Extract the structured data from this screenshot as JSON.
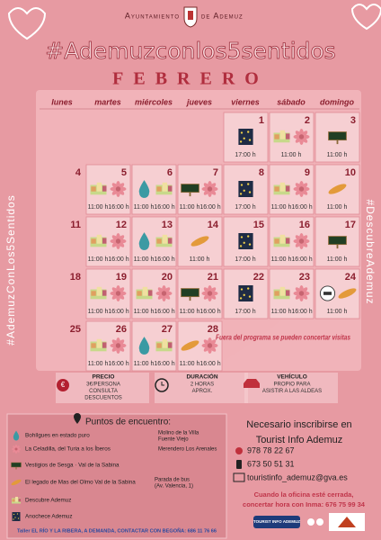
{
  "header": {
    "org_left": "Ayuntamiento",
    "org_right": "de Ademuz",
    "hashtag": "#Ademuzconlos5sentidos",
    "month": "FEBRERO"
  },
  "side": {
    "left": "#AdemuzConLos5Sentidos",
    "right": "#DescubreAdemuz"
  },
  "calendar": {
    "weekdays": [
      "lunes",
      "martes",
      "miércoles",
      "jueves",
      "viernes",
      "sábado",
      "domingo"
    ],
    "weeks": [
      [
        null,
        null,
        null,
        null,
        {
          "day": 1,
          "icons": [
            "night"
          ],
          "times": [
            "17:00 h"
          ]
        },
        {
          "day": 2,
          "icons": [
            "village",
            "flower"
          ],
          "times": [
            "11:00 h"
          ]
        },
        {
          "day": 3,
          "icons": [
            "sign"
          ],
          "times": [
            "11:00 h"
          ]
        }
      ],
      [
        {
          "day": 4
        },
        {
          "day": 5,
          "icons": [
            "village",
            "flower"
          ],
          "times": [
            "11:00 h",
            "16:00 h"
          ]
        },
        {
          "day": 6,
          "icons": [
            "drop",
            "village"
          ],
          "times": [
            "11:00 h",
            "16:00 h"
          ]
        },
        {
          "day": 7,
          "icons": [
            "sign",
            "flower"
          ],
          "times": [
            "11:00 h",
            "16:00 h"
          ]
        },
        {
          "day": 8,
          "icons": [
            "night"
          ],
          "times": [
            "17:00 h"
          ]
        },
        {
          "day": 9,
          "icons": [
            "village",
            "flower"
          ],
          "times": [
            "11:00 h",
            "16:00 h"
          ]
        },
        {
          "day": 10,
          "icons": [
            "bread"
          ],
          "times": [
            "11:00 h"
          ]
        }
      ],
      [
        {
          "day": 11
        },
        {
          "day": 12,
          "icons": [
            "village",
            "flower"
          ],
          "times": [
            "11:00 h",
            "16:00 h"
          ]
        },
        {
          "day": 13,
          "icons": [
            "drop",
            "village"
          ],
          "times": [
            "11:00 h",
            "16:00 h"
          ]
        },
        {
          "day": 14,
          "icons": [
            "bread"
          ],
          "times": [
            "11:00 h"
          ]
        },
        {
          "day": 15,
          "icons": [
            "night"
          ],
          "times": [
            "17:00 h"
          ]
        },
        {
          "day": 16,
          "icons": [
            "village",
            "flower"
          ],
          "times": [
            "11:00 h",
            "16:00 h"
          ]
        },
        {
          "day": 17,
          "icons": [
            "sign"
          ],
          "times": [
            "11:00 h"
          ]
        }
      ],
      [
        {
          "day": 18
        },
        {
          "day": 19,
          "icons": [
            "village",
            "flower"
          ],
          "times": [
            "11:00 h",
            "16:00 h"
          ]
        },
        {
          "day": 20,
          "icons": [
            "village",
            "flower"
          ],
          "times": [
            "11:00 h",
            "16:00 h"
          ]
        },
        {
          "day": 21,
          "icons": [
            "sign",
            "flower"
          ],
          "times": [
            "11:00 h",
            "16:00 h"
          ]
        },
        {
          "day": 22,
          "icons": [
            "night"
          ],
          "times": [
            "17:00 h"
          ]
        },
        {
          "day": 23,
          "icons": [
            "village",
            "flower"
          ],
          "times": [
            "11:00 h",
            "16:00 h"
          ]
        },
        {
          "day": 24,
          "icons": [
            "logo",
            "bread"
          ],
          "times": [
            "11:00 h"
          ]
        }
      ],
      [
        {
          "day": 25
        },
        {
          "day": 26,
          "icons": [
            "village",
            "flower"
          ],
          "times": [
            "11:00 h",
            "16:00 h"
          ]
        },
        {
          "day": 27,
          "icons": [
            "drop",
            "village"
          ],
          "times": [
            "11:00 h",
            "16:00 h"
          ]
        },
        {
          "day": 28,
          "icons": [
            "bread",
            "flower"
          ],
          "times": [
            "11:00 h",
            "16:00 h"
          ]
        },
        null,
        null,
        null
      ]
    ],
    "note": "Fuera del programa se pueden concertar visitas"
  },
  "info": [
    {
      "title": "PRECIO",
      "text": [
        "3€/PERSONA",
        "CONSULTA",
        "DESCUENTOS"
      ]
    },
    {
      "title": "DURACIÓN",
      "text": [
        "2 HORAS",
        "APROX."
      ]
    },
    {
      "title": "VEHÍCULO",
      "text": [
        "PROPIO  PARA",
        "ASISTIR A LAS ALDEAS"
      ]
    }
  ],
  "meeting": {
    "title": "Puntos de encuentro:",
    "items": [
      {
        "icon": "drop",
        "name": "Bohílgues en estado puro",
        "place": [
          "Molino de la Villa",
          "Fuente Viejo"
        ]
      },
      {
        "icon": "flower",
        "name": "La Celadilla, del Turia a los Íberos",
        "place": [
          "Merendero Los Arenales"
        ]
      },
      {
        "icon": "sign",
        "name": "Vestigios de Sesga · Val de la Sabina"
      },
      {
        "icon": "bread",
        "name": "El legado de Mas del Olmo Val de la Sabina",
        "place": [
          "Parada de bus",
          "(Av. Valencia, 1)"
        ]
      },
      {
        "icon": "village",
        "name": "Descubre Ademuz"
      },
      {
        "icon": "night",
        "name": "Anochece Ademuz"
      }
    ],
    "footer": "Taller EL RÍO Y LA RIBERA, A DEMANDA, CONTACTAR CON BEGOÑA: 686 11 76 66"
  },
  "contact": {
    "title": [
      "Necesario inscribirse en",
      "Tourist Info Ademuz"
    ],
    "phone": "978 78 22 67",
    "mobile": "673 50 51 31",
    "email": "touristinfo_ademuz@gva.es",
    "note": [
      "Cuando la oficina esté cerrada,",
      "concertar hora con Inma: 676 75 99 34"
    ],
    "logo": "TOURIST INFO ADEMUZ"
  }
}
